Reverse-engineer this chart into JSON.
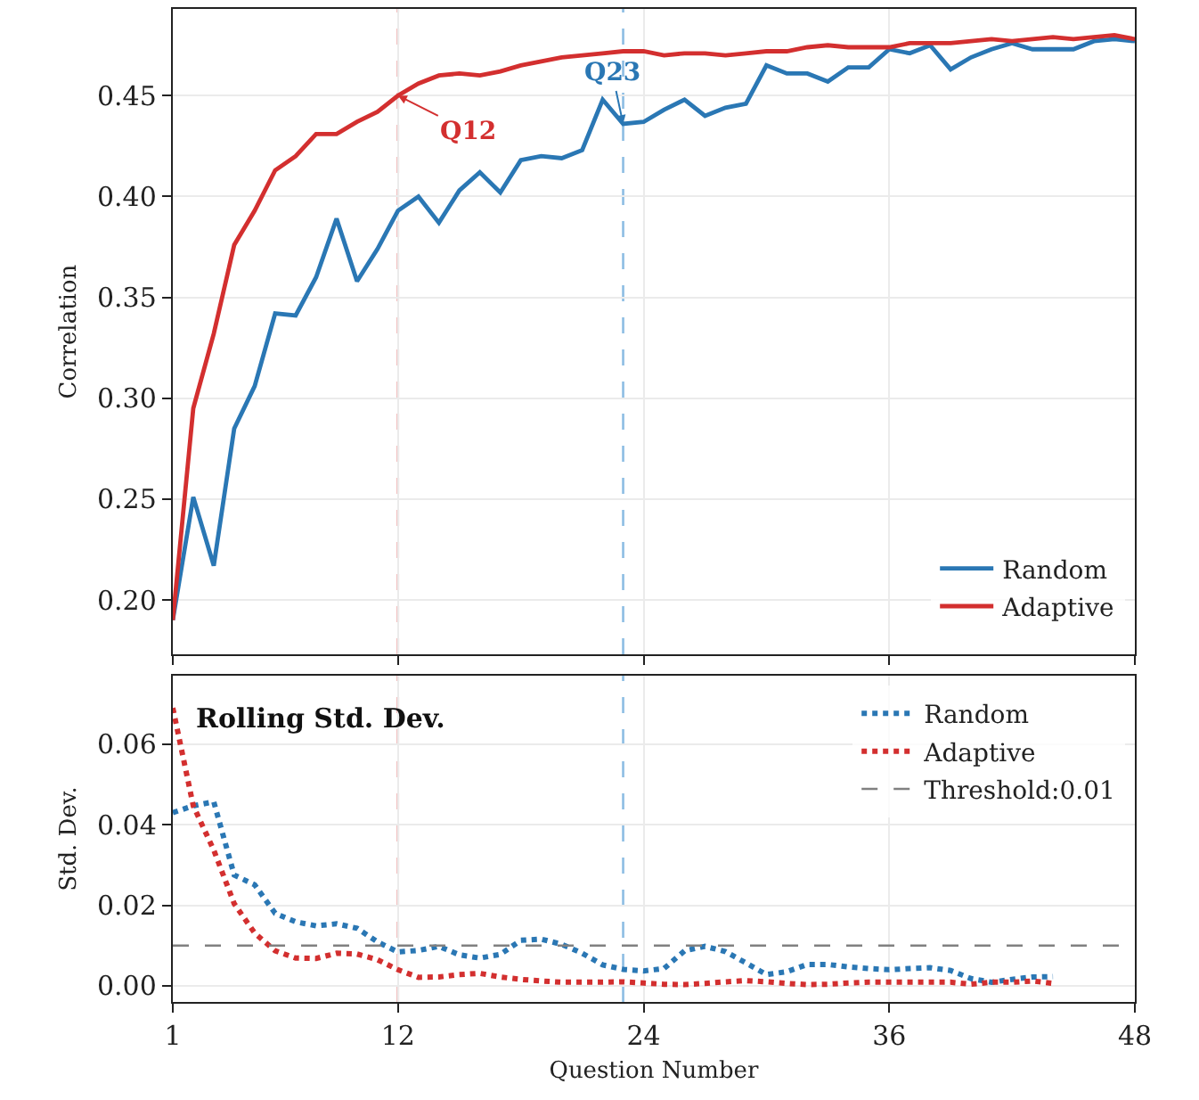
{
  "chart_data": [
    {
      "type": "line",
      "ylabel": "Correlation",
      "x": [
        1,
        2,
        3,
        4,
        5,
        6,
        7,
        8,
        9,
        10,
        11,
        12,
        13,
        14,
        15,
        16,
        17,
        18,
        19,
        20,
        21,
        22,
        23,
        24,
        25,
        26,
        27,
        28,
        29,
        30,
        31,
        32,
        33,
        34,
        35,
        36,
        37,
        38,
        39,
        40,
        41,
        42,
        43,
        44,
        45,
        46,
        47,
        48
      ],
      "series": [
        {
          "name": "Random",
          "color": "#2a77b4",
          "values": [
            0.19,
            0.251,
            0.217,
            0.285,
            0.306,
            0.342,
            0.341,
            0.36,
            0.389,
            0.358,
            0.374,
            0.393,
            0.4,
            0.387,
            0.403,
            0.412,
            0.402,
            0.418,
            0.42,
            0.419,
            0.423,
            0.448,
            0.436,
            0.437,
            0.443,
            0.448,
            0.44,
            0.444,
            0.446,
            0.465,
            0.461,
            0.461,
            0.457,
            0.464,
            0.464,
            0.473,
            0.471,
            0.475,
            0.463,
            0.469,
            0.473,
            0.476,
            0.473,
            0.473,
            0.473,
            0.477,
            0.478,
            0.477
          ]
        },
        {
          "name": "Adaptive",
          "color": "#d32f2f",
          "values": [
            0.19,
            0.295,
            0.332,
            0.376,
            0.393,
            0.413,
            0.42,
            0.431,
            0.431,
            0.437,
            0.442,
            0.45,
            0.456,
            0.46,
            0.461,
            0.46,
            0.462,
            0.465,
            0.467,
            0.469,
            0.47,
            0.471,
            0.472,
            0.472,
            0.47,
            0.471,
            0.471,
            0.47,
            0.471,
            0.472,
            0.472,
            0.474,
            0.475,
            0.474,
            0.474,
            0.474,
            0.476,
            0.476,
            0.476,
            0.477,
            0.478,
            0.477,
            0.478,
            0.479,
            0.478,
            0.479,
            0.48,
            0.478
          ]
        }
      ],
      "xlim": [
        1,
        48
      ],
      "xticks": [
        1,
        12,
        24,
        36,
        48
      ],
      "ylim": [
        0.173,
        0.493
      ],
      "yticks": [
        {
          "value": 0.2,
          "label": "0.20"
        },
        {
          "value": 0.25,
          "label": "0.25"
        },
        {
          "value": 0.3,
          "label": "0.30"
        },
        {
          "value": 0.35,
          "label": "0.35"
        },
        {
          "value": 0.4,
          "label": "0.40"
        },
        {
          "value": 0.45,
          "label": "0.45"
        }
      ],
      "tick_labels": "y",
      "grid": true,
      "legend": "bottom right",
      "line_style": "solid",
      "marker": "none",
      "ref_lines": [
        {
          "axis": "x",
          "value": 12,
          "color": "#e88a8a",
          "line_style": "dashed"
        },
        {
          "axis": "x",
          "value": 23,
          "color": "#8dbde3",
          "line_style": "dashed"
        }
      ],
      "annotations": [
        {
          "text": "Q12",
          "x": 12,
          "y": 0.45
        },
        {
          "text": "Q23",
          "x": 23,
          "y": 0.436
        }
      ]
    },
    {
      "type": "line",
      "xlabel": "Question Number",
      "ylabel": "Std. Dev.",
      "x": [
        1,
        2,
        3,
        4,
        5,
        6,
        7,
        8,
        9,
        10,
        11,
        12,
        13,
        14,
        15,
        16,
        17,
        18,
        19,
        20,
        21,
        22,
        23,
        24,
        25,
        26,
        27,
        28,
        29,
        30,
        31,
        32,
        33,
        34,
        35,
        36,
        37,
        38,
        39,
        40,
        41,
        42,
        43,
        44
      ],
      "series": [
        {
          "name": "Random",
          "color": "#2a77b4",
          "values": [
            0.043,
            0.0447,
            0.0457,
            0.0275,
            0.0251,
            0.018,
            0.0159,
            0.0149,
            0.0154,
            0.0143,
            0.0109,
            0.0084,
            0.0088,
            0.0098,
            0.0077,
            0.0069,
            0.0078,
            0.0113,
            0.0116,
            0.0103,
            0.0081,
            0.0052,
            0.0041,
            0.0037,
            0.0043,
            0.0087,
            0.0098,
            0.0085,
            0.0057,
            0.0028,
            0.0035,
            0.0053,
            0.0053,
            0.0047,
            0.0043,
            0.004,
            0.0043,
            0.0045,
            0.0038,
            0.0018,
            0.0009,
            0.0016,
            0.0022,
            0.0023
          ]
        },
        {
          "name": "Adaptive",
          "color": "#d32f2f",
          "values": [
            0.069,
            0.0447,
            0.0337,
            0.0204,
            0.0131,
            0.0087,
            0.0069,
            0.0068,
            0.0081,
            0.0079,
            0.0065,
            0.004,
            0.0021,
            0.0022,
            0.0028,
            0.0031,
            0.0022,
            0.0016,
            0.0012,
            0.0009,
            0.0009,
            0.0009,
            0.001,
            0.0007,
            0.0004,
            0.0003,
            0.0006,
            0.001,
            0.0013,
            0.001,
            0.0006,
            0.0003,
            0.0004,
            0.0007,
            0.0009,
            0.0009,
            0.0009,
            0.0009,
            0.0009,
            0.0004,
            0.0009,
            0.0009,
            0.0012,
            0.0006
          ]
        }
      ],
      "xlim": [
        1,
        48
      ],
      "xticks": [
        1,
        12,
        24,
        36,
        48
      ],
      "ylim": [
        -0.004,
        0.077
      ],
      "yticks": [
        {
          "value": 0,
          "label": "0.00"
        },
        {
          "value": 0.02,
          "label": "0.02"
        },
        {
          "value": 0.04,
          "label": "0.04"
        },
        {
          "value": 0.06,
          "label": "0.06"
        }
      ],
      "grid": true,
      "legend": "top right",
      "line_style": "dotted",
      "marker": "none",
      "ref_lines": [
        {
          "axis": "x",
          "value": 12,
          "color": "#e88a8a",
          "line_style": "dashed"
        },
        {
          "axis": "x",
          "value": 23,
          "color": "#8dbde3",
          "line_style": "dashed"
        },
        {
          "axis": "y",
          "value": 0.01,
          "label": "Threshold:0.01",
          "color": "#808080",
          "line_style": "dashed"
        }
      ],
      "annotations": [
        "Rolling Std. Dev."
      ]
    }
  ]
}
